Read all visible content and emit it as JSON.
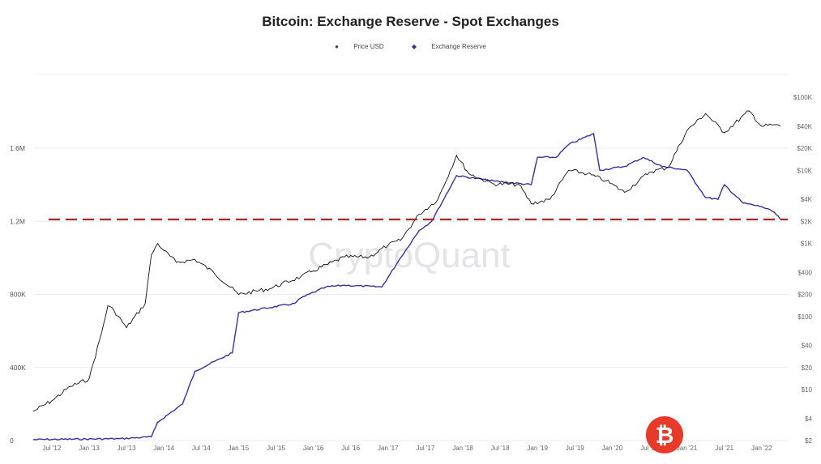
{
  "chart_data": {
    "type": "line",
    "title": "Bitcoin: Exchange Reserve - Spot Exchanges",
    "legend_placement": "top-center",
    "grid": true,
    "watermark": "CryptoQuant",
    "logo": "bitcoin-logo",
    "x_ticks": [
      "Jul '12",
      "Jan '13",
      "Jul '13",
      "Jan '14",
      "Jul '14",
      "Jan '15",
      "Jul '15",
      "Jan '16",
      "Jul '16",
      "Jan '17",
      "Jul '17",
      "Jan '18",
      "Jul '18",
      "Jan '19",
      "Jul '19",
      "Jan '20",
      "Jul '20",
      "Jan '21",
      "Jul '21",
      "Jan '22"
    ],
    "x_tick_dates": [
      "2012-07",
      "2013-01",
      "2013-07",
      "2014-01",
      "2014-07",
      "2015-01",
      "2015-07",
      "2016-01",
      "2016-07",
      "2017-01",
      "2017-07",
      "2018-01",
      "2018-07",
      "2019-01",
      "2019-07",
      "2020-01",
      "2020-07",
      "2021-01",
      "2021-07",
      "2022-01"
    ],
    "left_axis": {
      "ticks": [
        "0",
        "400K",
        "800K",
        "1.2M",
        "1.6M"
      ],
      "values": [
        0,
        400000,
        800000,
        1200000,
        1600000
      ],
      "range": [
        0,
        1900000
      ]
    },
    "right_axis": {
      "scale": "log",
      "ticks": [
        "$100K",
        "$40K",
        "$20K",
        "$10K",
        "$4K",
        "$2K",
        "$1K",
        "$400",
        "$200",
        "$100",
        "$40",
        "$20",
        "$10",
        "$4",
        "$2"
      ],
      "values": [
        100000,
        40000,
        20000,
        10000,
        4000,
        2000,
        1000,
        400,
        200,
        100,
        40,
        20,
        10,
        4,
        2
      ]
    },
    "reference_line": {
      "value": 1210000,
      "color": "#a52a2a",
      "style": "dashed"
    },
    "series": [
      {
        "name": "Price USD",
        "axis": "right",
        "color": "#111111",
        "marker": "dot",
        "dates": [
          "2012-04",
          "2012-07",
          "2012-10",
          "2013-01",
          "2013-03",
          "2013-04",
          "2013-05",
          "2013-07",
          "2013-10",
          "2013-11",
          "2013-12",
          "2014-01",
          "2014-03",
          "2014-06",
          "2014-09",
          "2015-01",
          "2015-06",
          "2015-11",
          "2016-01",
          "2016-06",
          "2016-10",
          "2017-01",
          "2017-03",
          "2017-06",
          "2017-09",
          "2017-12",
          "2018-02",
          "2018-06",
          "2018-10",
          "2018-12",
          "2019-03",
          "2019-06",
          "2019-09",
          "2019-12",
          "2020-03",
          "2020-07",
          "2020-10",
          "2021-01",
          "2021-04",
          "2021-07",
          "2021-11",
          "2022-01",
          "2022-03",
          "2022-04"
        ],
        "values": [
          5,
          7,
          11,
          14,
          60,
          140,
          120,
          70,
          150,
          700,
          1000,
          800,
          550,
          600,
          400,
          200,
          240,
          350,
          420,
          650,
          650,
          950,
          1100,
          2500,
          4000,
          16000,
          9000,
          6500,
          6400,
          3500,
          4000,
          10000,
          9000,
          7200,
          5000,
          9500,
          11000,
          35000,
          60000,
          33000,
          65000,
          40000,
          42000,
          40000
        ]
      },
      {
        "name": "Exchange Reserve",
        "axis": "left",
        "color": "#3b2f9e",
        "marker": "diamond",
        "dates": [
          "2012-04",
          "2013-06",
          "2013-11",
          "2013-12",
          "2014-04",
          "2014-06",
          "2014-12",
          "2015-01",
          "2015-10",
          "2015-11",
          "2016-03",
          "2016-06",
          "2016-12",
          "2017-03",
          "2017-06",
          "2017-08",
          "2017-12",
          "2018-06",
          "2018-12",
          "2019-01",
          "2019-04",
          "2019-06",
          "2019-10",
          "2019-11",
          "2020-03",
          "2020-06",
          "2020-09",
          "2021-01",
          "2021-04",
          "2021-06",
          "2021-07",
          "2021-10",
          "2022-01",
          "2022-03",
          "2022-04"
        ],
        "values": [
          5000,
          10000,
          20000,
          100000,
          200000,
          380000,
          480000,
          700000,
          750000,
          780000,
          840000,
          850000,
          840000,
          1000000,
          1150000,
          1200000,
          1450000,
          1420000,
          1400000,
          1550000,
          1550000,
          1620000,
          1680000,
          1480000,
          1500000,
          1550000,
          1500000,
          1480000,
          1330000,
          1320000,
          1400000,
          1300000,
          1280000,
          1250000,
          1210000
        ]
      }
    ]
  }
}
